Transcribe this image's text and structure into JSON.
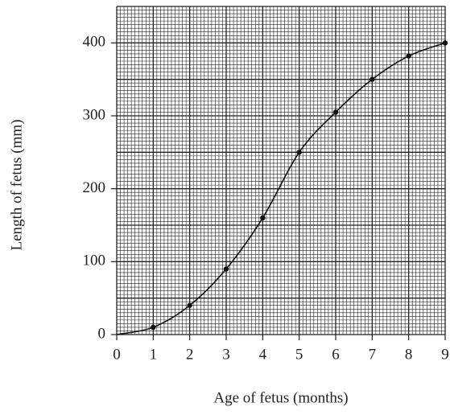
{
  "chart_data": {
    "type": "line",
    "x_label": "Age of fetus (months)",
    "y_label": "Length of fetus (mm)",
    "x": [
      0,
      1,
      2,
      3,
      4,
      5,
      6,
      7,
      8,
      9
    ],
    "values": [
      0,
      10,
      40,
      90,
      160,
      250,
      305,
      350,
      382,
      400
    ],
    "color": "#111111",
    "xlim": [
      0,
      9
    ],
    "xticks": [
      0,
      1,
      2,
      3,
      4,
      5,
      6,
      7,
      8,
      9
    ],
    "ylim": [
      0,
      450
    ],
    "yticks": [
      0,
      100,
      200,
      300,
      400
    ],
    "grid": true
  }
}
